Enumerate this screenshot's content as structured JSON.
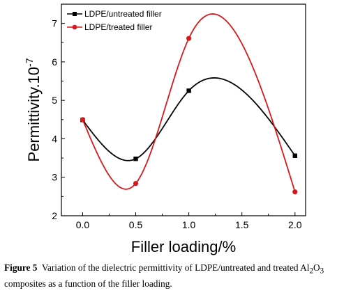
{
  "chart_data": {
    "type": "line",
    "x": [
      0.0,
      0.5,
      1.0,
      2.0
    ],
    "xticks": [
      "0.0",
      "0.5",
      "1.0",
      "1.5",
      "2.0"
    ],
    "yticks": [
      "2",
      "3",
      "4",
      "5",
      "6",
      "7"
    ],
    "xlim": [
      -0.2,
      2.1
    ],
    "ylim": [
      2,
      7.5
    ],
    "xlabel": "Filler loading/%",
    "ylabel_base": "Permittivity.10",
    "ylabel_exp": "-7",
    "legend_position": "top-left",
    "grid": false,
    "smooth": true,
    "series": [
      {
        "name": "LDPE/untreated filler",
        "values": [
          4.49,
          3.48,
          5.25,
          3.56
        ],
        "color": "#000000",
        "marker": "square"
      },
      {
        "name": "LDPE/treated filler",
        "values": [
          4.5,
          2.84,
          6.61,
          2.62
        ],
        "color": "#d7191c",
        "marker": "circle"
      }
    ]
  },
  "caption": {
    "label": "Figure 5",
    "text_1": "Variation of the dielectric permittivity of LDPE/untreated and treated Al",
    "sub_1": "2",
    "text_2": "O",
    "sub_2": "3",
    "text_3": " composites as a function of the filler loading."
  }
}
